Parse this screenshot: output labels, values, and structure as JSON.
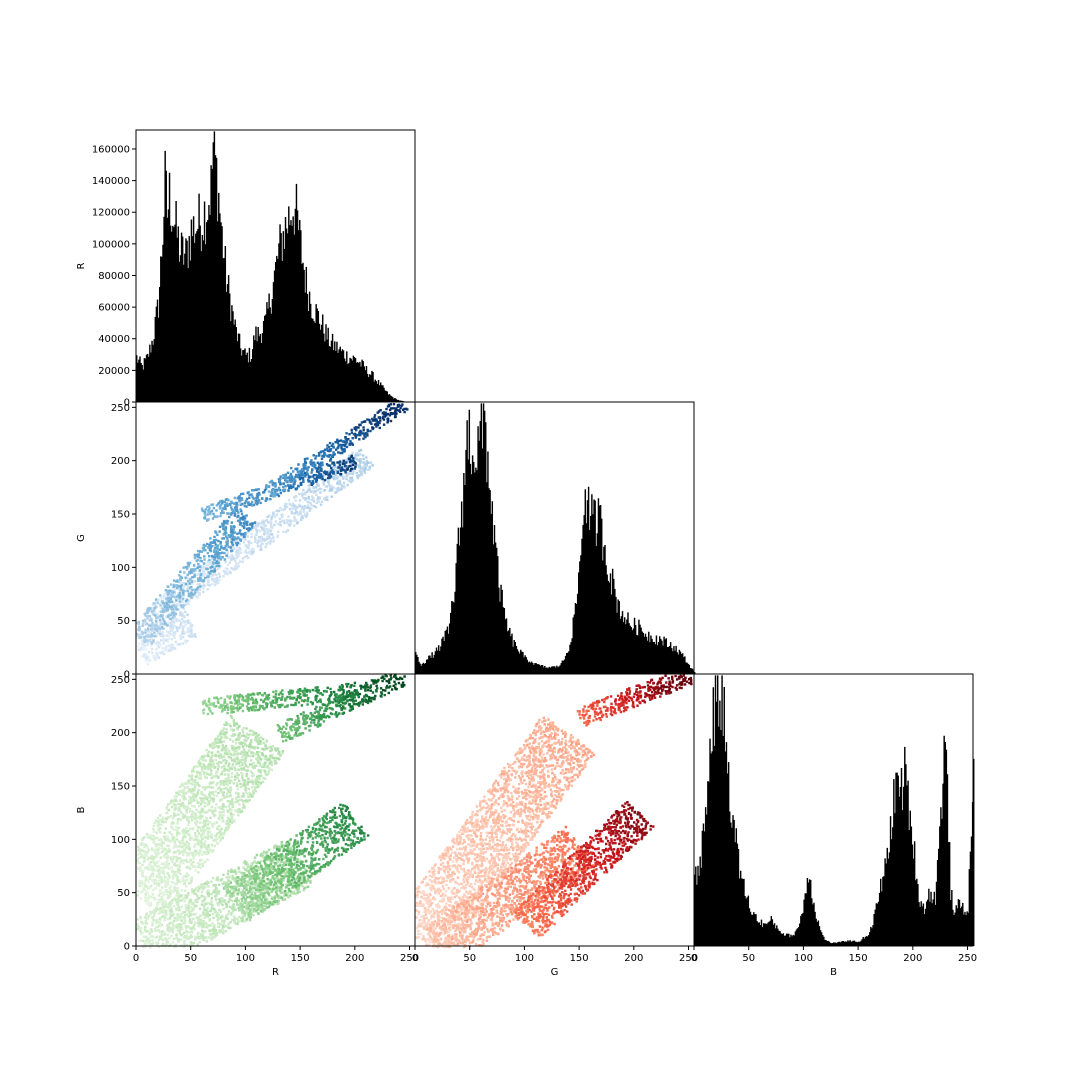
{
  "chart_data": [
    {
      "panel": "R-R",
      "type": "histogram",
      "variable": "R",
      "ylabel": "R",
      "x_ticks": [],
      "y_ticks": [
        0,
        20000,
        40000,
        60000,
        80000,
        100000,
        120000,
        140000,
        160000
      ],
      "xlim": [
        0,
        255
      ],
      "ylim": [
        0,
        172000
      ],
      "color": "#000000",
      "profile": [
        [
          0,
          28000
        ],
        [
          5,
          22000
        ],
        [
          10,
          28000
        ],
        [
          15,
          40000
        ],
        [
          20,
          62000
        ],
        [
          24,
          108000
        ],
        [
          26,
          138000
        ],
        [
          28,
          120000
        ],
        [
          30,
          130000
        ],
        [
          35,
          112000
        ],
        [
          40,
          95000
        ],
        [
          45,
          92000
        ],
        [
          50,
          108000
        ],
        [
          55,
          112000
        ],
        [
          60,
          116000
        ],
        [
          65,
          125000
        ],
        [
          68,
          135000
        ],
        [
          70,
          162000
        ],
        [
          72,
          150000
        ],
        [
          74,
          138000
        ],
        [
          78,
          105000
        ],
        [
          82,
          78000
        ],
        [
          86,
          62000
        ],
        [
          90,
          47000
        ],
        [
          95,
          34000
        ],
        [
          100,
          29000
        ],
        [
          105,
          30000
        ],
        [
          108,
          42000
        ],
        [
          112,
          43000
        ],
        [
          118,
          50000
        ],
        [
          125,
          75000
        ],
        [
          130,
          95000
        ],
        [
          135,
          108000
        ],
        [
          140,
          118000
        ],
        [
          143,
          125000
        ],
        [
          146,
          118000
        ],
        [
          150,
          98000
        ],
        [
          155,
          75000
        ],
        [
          160,
          62000
        ],
        [
          165,
          55000
        ],
        [
          170,
          48000
        ],
        [
          175,
          40000
        ],
        [
          180,
          36000
        ],
        [
          185,
          33000
        ],
        [
          190,
          30000
        ],
        [
          195,
          28000
        ],
        [
          200,
          27000
        ],
        [
          205,
          24000
        ],
        [
          210,
          20000
        ],
        [
          215,
          17000
        ],
        [
          220,
          13000
        ],
        [
          225,
          9000
        ],
        [
          230,
          5000
        ],
        [
          235,
          2500
        ],
        [
          240,
          1000
        ],
        [
          245,
          300
        ],
        [
          255,
          0
        ]
      ]
    },
    {
      "panel": "R-G",
      "type": "scatter",
      "x_variable": "R",
      "y_variable": "G",
      "ylabel": "G",
      "y_ticks": [
        0,
        50,
        100,
        150,
        200,
        250
      ],
      "xlim": [
        0,
        255
      ],
      "ylim": [
        0,
        255
      ],
      "colormap": "Blues",
      "bands": [
        {
          "start": [
            2,
            22
          ],
          "end": [
            50,
            50
          ],
          "width": 28,
          "weight": 0.18
        },
        {
          "start": [
            15,
            55
          ],
          "end": [
            210,
            205
          ],
          "width": 22,
          "weight": 0.25
        },
        {
          "start": [
            2,
            35
          ],
          "end": [
            100,
            150
          ],
          "width": 24,
          "weight": 0.55
        },
        {
          "start": [
            60,
            150
          ],
          "end": [
            200,
            200
          ],
          "width": 14,
          "weight": 0.82
        },
        {
          "start": [
            120,
            172
          ],
          "end": [
            245,
            255
          ],
          "width": 14,
          "weight": 0.95
        }
      ]
    },
    {
      "panel": "G-G",
      "type": "histogram",
      "variable": "G",
      "x_ticks": [],
      "y_ticks": [],
      "xlim": [
        0,
        255
      ],
      "ylim": [
        0,
        255000
      ],
      "color": "#000000",
      "profile": [
        [
          0,
          18000
        ],
        [
          5,
          9000
        ],
        [
          10,
          13000
        ],
        [
          20,
          22000
        ],
        [
          30,
          40000
        ],
        [
          35,
          75000
        ],
        [
          40,
          130000
        ],
        [
          45,
          190000
        ],
        [
          48,
          225000
        ],
        [
          52,
          215000
        ],
        [
          56,
          205000
        ],
        [
          60,
          225000
        ],
        [
          63,
          240000
        ],
        [
          66,
          200000
        ],
        [
          70,
          150000
        ],
        [
          75,
          95000
        ],
        [
          80,
          60000
        ],
        [
          85,
          40000
        ],
        [
          90,
          28000
        ],
        [
          100,
          15000
        ],
        [
          110,
          9000
        ],
        [
          120,
          6000
        ],
        [
          130,
          7000
        ],
        [
          135,
          12000
        ],
        [
          140,
          25000
        ],
        [
          145,
          50000
        ],
        [
          150,
          100000
        ],
        [
          155,
          175000
        ],
        [
          158,
          155000
        ],
        [
          162,
          140000
        ],
        [
          167,
          145000
        ],
        [
          170,
          135000
        ],
        [
          175,
          108000
        ],
        [
          180,
          85000
        ],
        [
          185,
          65000
        ],
        [
          190,
          55000
        ],
        [
          195,
          48000
        ],
        [
          200,
          45000
        ],
        [
          205,
          43000
        ],
        [
          210,
          38000
        ],
        [
          215,
          35000
        ],
        [
          220,
          33000
        ],
        [
          225,
          32000
        ],
        [
          230,
          28000
        ],
        [
          235,
          26000
        ],
        [
          240,
          22000
        ],
        [
          245,
          16000
        ],
        [
          250,
          8000
        ],
        [
          255,
          2000
        ]
      ]
    },
    {
      "panel": "R-B",
      "type": "scatter",
      "x_variable": "R",
      "y_variable": "B",
      "ylabel": "B",
      "xlabel": "R",
      "x_ticks": [
        0,
        50,
        100,
        150,
        200,
        250
      ],
      "y_ticks": [
        0,
        50,
        100,
        150,
        200,
        250
      ],
      "xlim": [
        0,
        255
      ],
      "ylim": [
        0,
        255
      ],
      "colormap": "Greens",
      "bands": [
        {
          "start": [
            2,
            45
          ],
          "end": [
            110,
            200
          ],
          "width": 60,
          "weight": 0.25
        },
        {
          "start": [
            2,
            0
          ],
          "end": [
            150,
            80
          ],
          "width": 50,
          "weight": 0.3
        },
        {
          "start": [
            90,
            40
          ],
          "end": [
            200,
            120
          ],
          "width": 40,
          "weight": 0.65
        },
        {
          "start": [
            60,
            225
          ],
          "end": [
            200,
            240
          ],
          "width": 16,
          "weight": 0.72
        },
        {
          "start": [
            130,
            200
          ],
          "end": [
            245,
            255
          ],
          "width": 18,
          "weight": 0.9
        }
      ]
    },
    {
      "panel": "G-B",
      "type": "scatter",
      "x_variable": "G",
      "y_variable": "B",
      "xlabel": "G",
      "x_ticks": [
        0,
        50,
        100,
        150,
        200,
        250
      ],
      "xlim": [
        0,
        255
      ],
      "ylim": [
        0,
        255
      ],
      "colormap": "Reds",
      "bands": [
        {
          "start": [
            2,
            5
          ],
          "end": [
            140,
            200
          ],
          "width": 60,
          "weight": 0.25
        },
        {
          "start": [
            20,
            0
          ],
          "end": [
            150,
            95
          ],
          "width": 45,
          "weight": 0.4
        },
        {
          "start": [
            100,
            20
          ],
          "end": [
            205,
            125
          ],
          "width": 35,
          "weight": 0.8
        },
        {
          "start": [
            150,
            215
          ],
          "end": [
            250,
            255
          ],
          "width": 18,
          "weight": 0.92
        }
      ]
    },
    {
      "panel": "B-B",
      "type": "histogram",
      "variable": "B",
      "xlabel": "B",
      "x_ticks": [
        0,
        50,
        100,
        150,
        200,
        250
      ],
      "y_ticks": [],
      "xlim": [
        0,
        255
      ],
      "ylim": [
        0,
        255000
      ],
      "color": "#000000",
      "profile": [
        [
          0,
          60000
        ],
        [
          5,
          80000
        ],
        [
          10,
          120000
        ],
        [
          14,
          185000
        ],
        [
          18,
          225000
        ],
        [
          21,
          243000
        ],
        [
          24,
          235000
        ],
        [
          28,
          200000
        ],
        [
          32,
          150000
        ],
        [
          36,
          110000
        ],
        [
          40,
          80000
        ],
        [
          45,
          55000
        ],
        [
          50,
          38000
        ],
        [
          55,
          28000
        ],
        [
          60,
          22000
        ],
        [
          65,
          20000
        ],
        [
          70,
          24000
        ],
        [
          75,
          18000
        ],
        [
          80,
          12000
        ],
        [
          85,
          10000
        ],
        [
          90,
          10000
        ],
        [
          95,
          18000
        ],
        [
          100,
          40000
        ],
        [
          104,
          72000
        ],
        [
          108,
          45000
        ],
        [
          112,
          25000
        ],
        [
          116,
          12000
        ],
        [
          120,
          5000
        ],
        [
          125,
          3000
        ],
        [
          130,
          3000
        ],
        [
          140,
          5000
        ],
        [
          150,
          4000
        ],
        [
          160,
          12000
        ],
        [
          165,
          30000
        ],
        [
          170,
          55000
        ],
        [
          175,
          75000
        ],
        [
          180,
          120000
        ],
        [
          185,
          155000
        ],
        [
          188,
          145000
        ],
        [
          192,
          160000
        ],
        [
          196,
          130000
        ],
        [
          200,
          95000
        ],
        [
          205,
          45000
        ],
        [
          210,
          35000
        ],
        [
          215,
          50000
        ],
        [
          220,
          45000
        ],
        [
          225,
          120000
        ],
        [
          228,
          185000
        ],
        [
          231,
          150000
        ],
        [
          234,
          50000
        ],
        [
          238,
          30000
        ],
        [
          242,
          40000
        ],
        [
          246,
          35000
        ],
        [
          250,
          32000
        ],
        [
          254,
          155000
        ],
        [
          255,
          150000
        ]
      ]
    }
  ]
}
